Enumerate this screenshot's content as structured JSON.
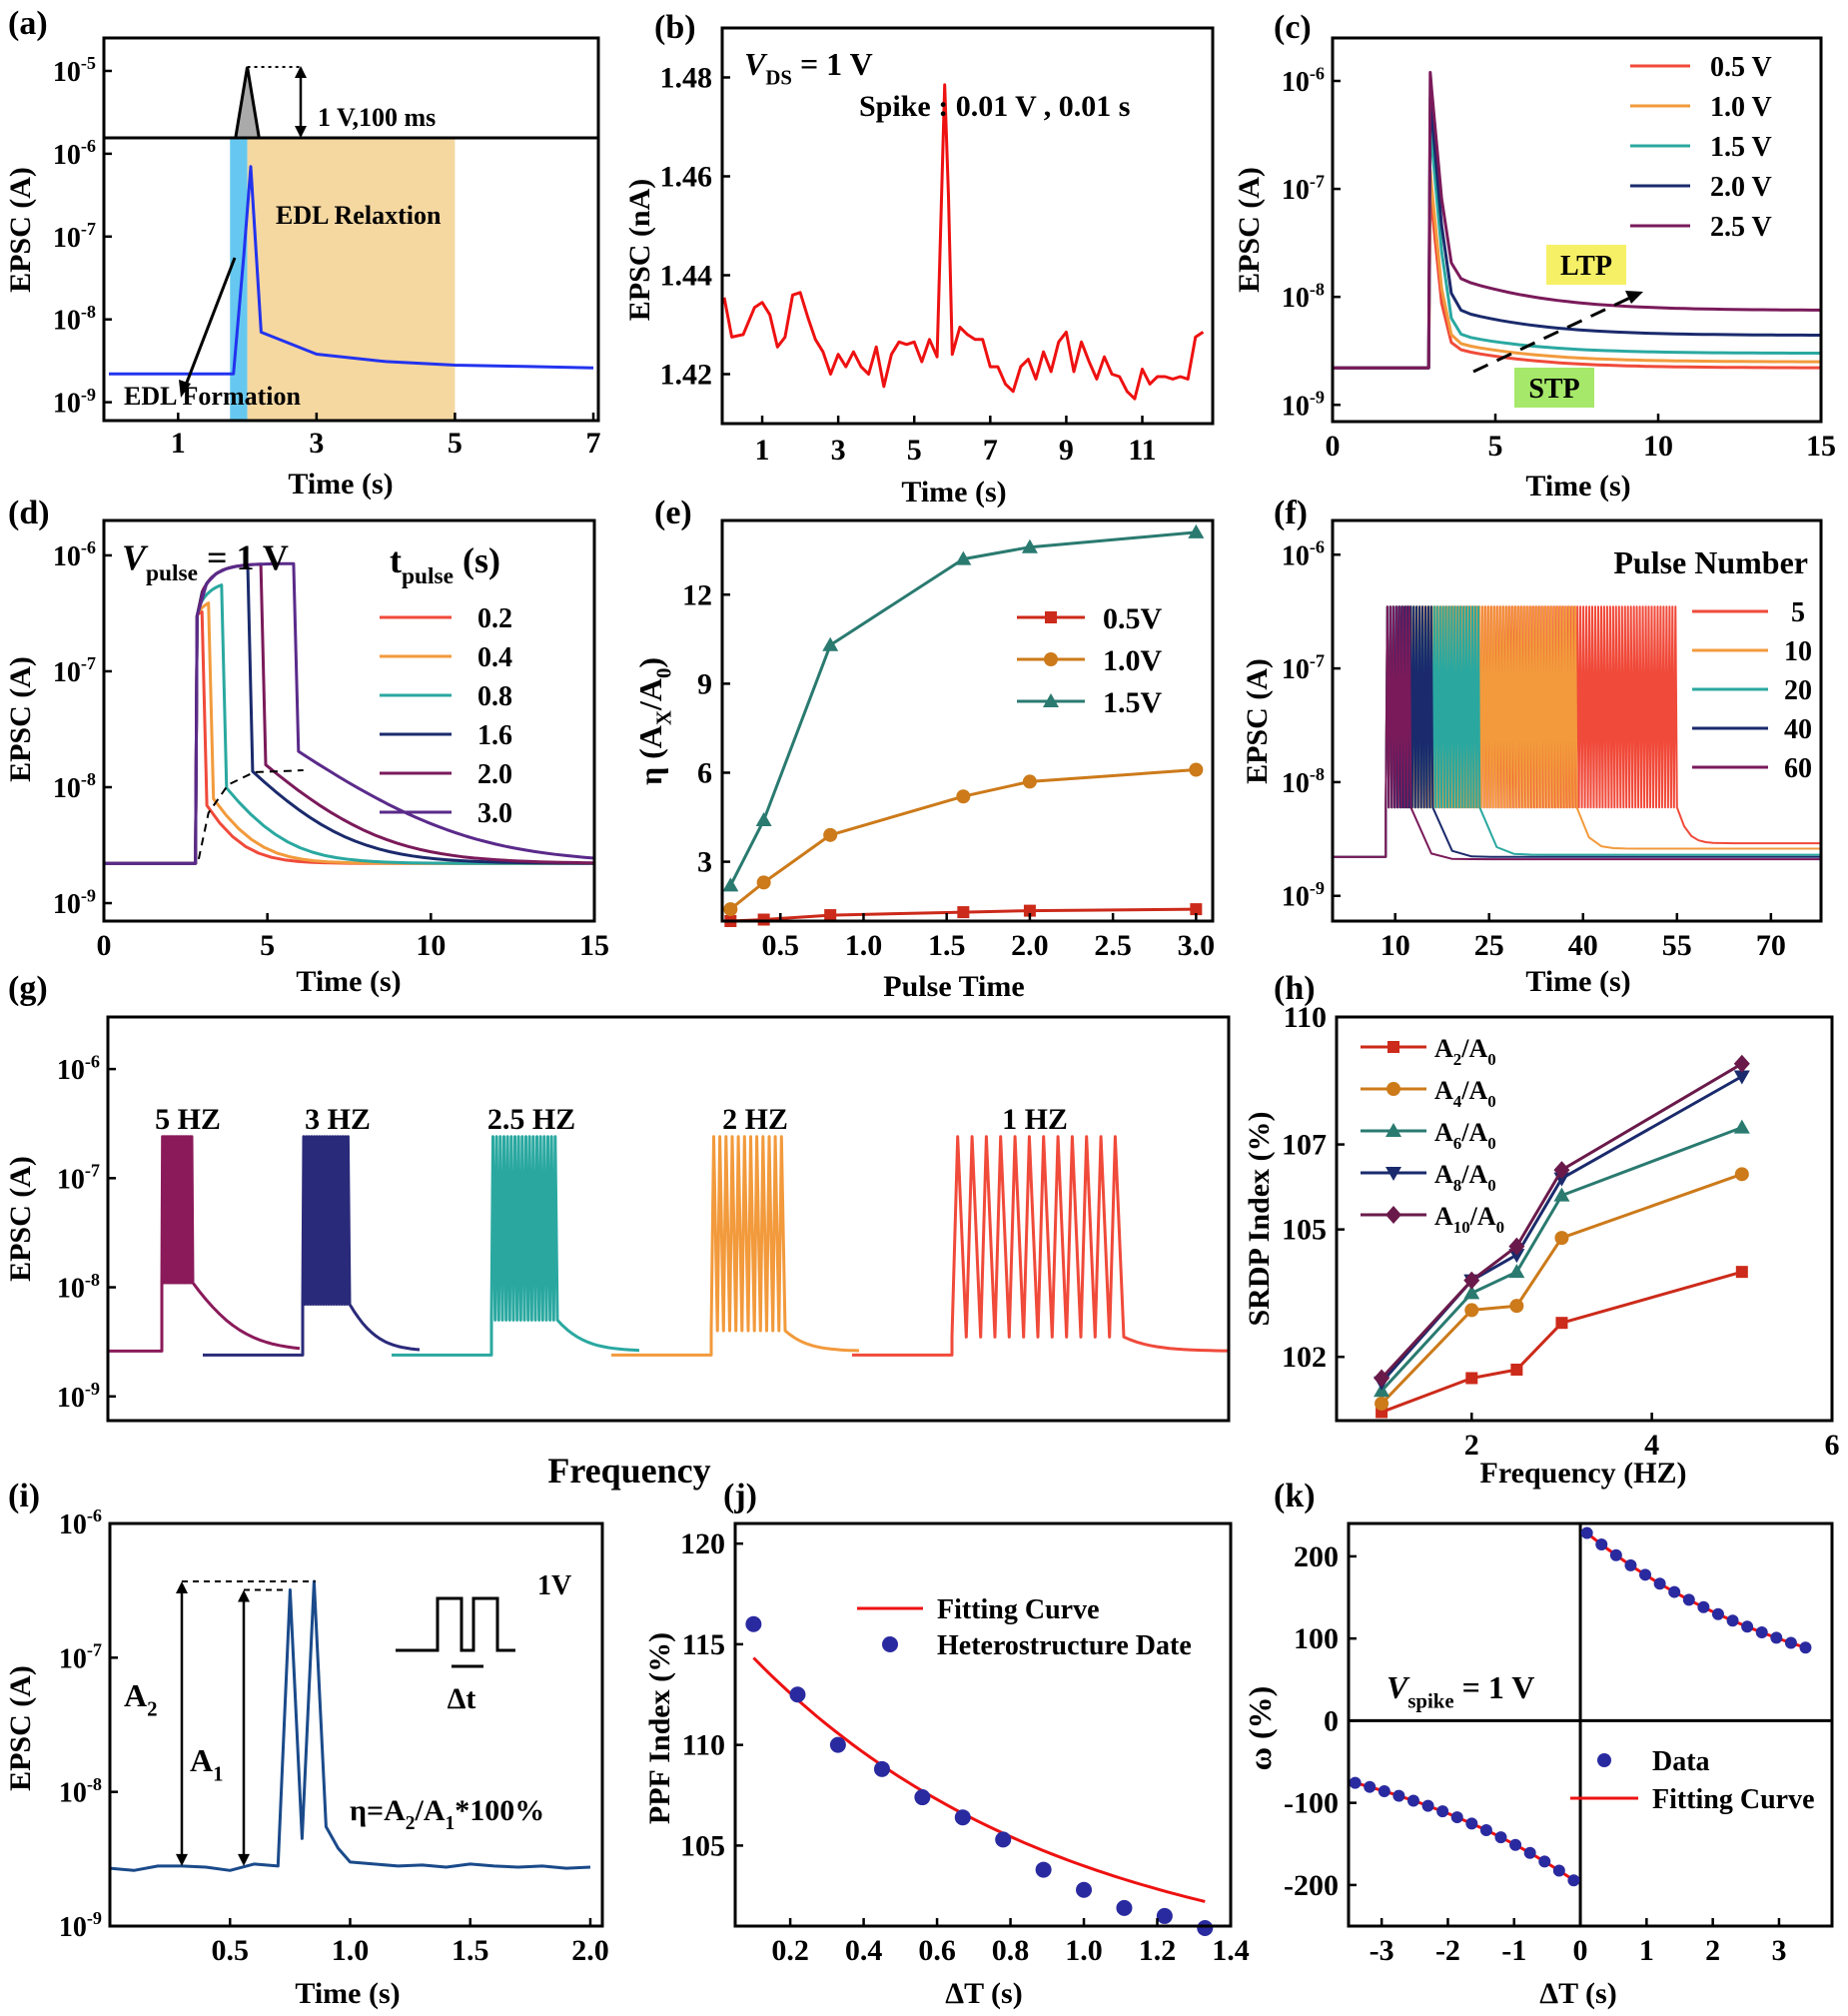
{
  "chart_data": [
    {
      "id": "a",
      "type": "line",
      "label": "(a)",
      "xlabel": "Time (s)",
      "ylabel": "EPSC (A)",
      "xlim": [
        0,
        7
      ],
      "ylim": [
        1e-09,
        1e-05
      ],
      "yscale": "log",
      "xticks": [
        1,
        3,
        5,
        7
      ],
      "yticks": [
        1e-09,
        1e-08,
        1e-07,
        1e-06,
        1e-05
      ],
      "ytick_labels": [
        [
          "10",
          "-9"
        ],
        [
          "10",
          "-8"
        ],
        [
          "10",
          "-7"
        ],
        [
          "10",
          "-6"
        ],
        [
          "10",
          "-5"
        ]
      ],
      "annotations": [
        "1 V,100 ms",
        "EDL Relaxtion",
        "EDL Formation"
      ],
      "colors": {
        "line": "#2233ee",
        "formation": "#66c8f0",
        "relaxation": "#f5d7a0",
        "pulse": "#aaaaaa"
      },
      "series": [
        {
          "name": "EPSC",
          "x": [
            0,
            1.8,
            1.95,
            2.05,
            2.2,
            3,
            4,
            5,
            6,
            7
          ],
          "y": [
            2.2e-09,
            2.2e-09,
            6e-08,
            7e-07,
            7e-09,
            3.8e-09,
            3.1e-09,
            2.8e-09,
            2.7e-09,
            2.6e-09
          ]
        }
      ],
      "pulse": {
        "start": 1.85,
        "peak_time": 2.0,
        "end": 2.15
      }
    },
    {
      "id": "b",
      "type": "line",
      "label": "(b)",
      "xlabel": "Time (s)",
      "ylabel": "EPSC (nA)",
      "xlim": [
        0,
        12.8
      ],
      "ylim": [
        1.41,
        1.49
      ],
      "xticks": [
        1,
        3,
        5,
        7,
        9,
        11
      ],
      "yticks": [
        1.42,
        1.44,
        1.46,
        1.48
      ],
      "annotations": [
        "V",
        "DS",
        " = 1 V",
        "Spike : 0.01 V , 0.01 s"
      ],
      "color": "#ee1111",
      "series": [
        {
          "name": "EPSC",
          "x": [
            0,
            0.2,
            0.5,
            0.8,
            1.0,
            1.2,
            1.4,
            1.6,
            1.8,
            2.0,
            2.2,
            2.4,
            2.6,
            2.8,
            3.0,
            3.2,
            3.4,
            3.6,
            3.8,
            4.0,
            4.2,
            4.4,
            4.6,
            4.8,
            5.0,
            5.2,
            5.4,
            5.6,
            5.8,
            5.9,
            6.0,
            6.2,
            6.4,
            6.6,
            6.8,
            7.0,
            7.2,
            7.4,
            7.6,
            7.8,
            8.0,
            8.2,
            8.4,
            8.6,
            8.8,
            9.0,
            9.2,
            9.4,
            9.6,
            9.8,
            10.0,
            10.2,
            10.4,
            10.6,
            10.8,
            11.0,
            11.2,
            11.4,
            11.6,
            11.8,
            12.0,
            12.2,
            12.4,
            12.6
          ],
          "y": [
            1.4355,
            1.4275,
            1.428,
            1.4335,
            1.4345,
            1.432,
            1.4255,
            1.4275,
            1.436,
            1.4365,
            1.4315,
            1.427,
            1.4245,
            1.42,
            1.424,
            1.4215,
            1.4245,
            1.4215,
            1.42,
            1.4255,
            1.4175,
            1.424,
            1.4265,
            1.426,
            1.4265,
            1.4225,
            1.427,
            1.4235,
            1.4785,
            1.456,
            1.424,
            1.4295,
            1.428,
            1.427,
            1.427,
            1.4215,
            1.4215,
            1.418,
            1.4165,
            1.4215,
            1.423,
            1.419,
            1.4245,
            1.4205,
            1.4265,
            1.4285,
            1.4205,
            1.4265,
            1.4225,
            1.419,
            1.4235,
            1.42,
            1.4195,
            1.4165,
            1.415,
            1.421,
            1.418,
            1.4195,
            1.4195,
            1.419,
            1.4195,
            1.419,
            1.4275,
            1.4285
          ]
        }
      ]
    },
    {
      "id": "c",
      "type": "line",
      "label": "(c)",
      "xlabel": "Time (s)",
      "ylabel": "EPSC (A)",
      "xlim": [
        0,
        15
      ],
      "ylim": [
        7e-10,
        2.5e-06
      ],
      "yscale": "log",
      "xticks": [
        0,
        5,
        10,
        15
      ],
      "yticks": [
        1e-09,
        1e-08,
        1e-07,
        1e-06
      ],
      "ytick_labels": [
        [
          "10",
          "-9"
        ],
        [
          "10",
          "-8"
        ],
        [
          "10",
          "-7"
        ],
        [
          "10",
          "-6"
        ]
      ],
      "annotations": [
        "LTP",
        "STP"
      ],
      "series": [
        {
          "name": "0.5 V",
          "color": "#f04a3a",
          "peak": 1e-07,
          "final": 2.2e-09
        },
        {
          "name": "1.0 V",
          "color": "#f29a3c",
          "peak": 1.5e-07,
          "final": 2.5e-09
        },
        {
          "name": "1.5 V",
          "color": "#2aa8a0",
          "peak": 4e-07,
          "final": 3e-09
        },
        {
          "name": "2.0 V",
          "color": "#1a2a6c",
          "peak": 7e-07,
          "final": 4.4e-09
        },
        {
          "name": "2.5 V",
          "color": "#7a1a5a",
          "peak": 1.2e-06,
          "final": 7.5e-09
        }
      ],
      "baseline": 2.2e-09,
      "pulse_time": 3.0
    },
    {
      "id": "d",
      "type": "line",
      "label": "(d)",
      "xlabel": "Time (s)",
      "ylabel": "EPSC (A)",
      "xlim": [
        0,
        15
      ],
      "ylim": [
        7e-10,
        2e-06
      ],
      "yscale": "log",
      "xticks": [
        0,
        5,
        10,
        15
      ],
      "yticks": [
        1e-09,
        1e-08,
        1e-07,
        1e-06
      ],
      "ytick_labels": [
        [
          "10",
          "-9"
        ],
        [
          "10",
          "-8"
        ],
        [
          "10",
          "-7"
        ],
        [
          "10",
          "-6"
        ]
      ],
      "legend_title": [
        "V",
        "pulse",
        " = 1 V",
        "t",
        "pulse",
        " (s)"
      ],
      "series": [
        {
          "name": "0.2",
          "color": "#f04a3a",
          "duration": 0.2
        },
        {
          "name": "0.4",
          "color": "#f29a3c",
          "duration": 0.4
        },
        {
          "name": "0.8",
          "color": "#2aa8a0",
          "duration": 0.8
        },
        {
          "name": "1.6",
          "color": "#1a2a6c",
          "duration": 1.6
        },
        {
          "name": "2.0",
          "color": "#7a1a5a",
          "duration": 2.0
        },
        {
          "name": "3.0",
          "color": "#5a2a8a",
          "duration": 3.0
        }
      ],
      "baseline": 2.2e-09,
      "pulse_start": 2.8
    },
    {
      "id": "e",
      "type": "line",
      "label": "(e)",
      "xlabel": "Pulse Time",
      "ylabel": "η (A_X/A_0)",
      "xlim": [
        0.15,
        3.1
      ],
      "ylim": [
        1,
        14.5
      ],
      "xticks": [
        0.5,
        1.0,
        1.5,
        2.0,
        2.5,
        3.0
      ],
      "yticks": [
        3,
        6,
        9,
        12
      ],
      "series": [
        {
          "name": "0.5V",
          "color": "#cc2a1a",
          "marker": "square",
          "x": [
            0.2,
            0.4,
            0.8,
            1.6,
            2.0,
            3.0
          ],
          "y": [
            1.0,
            1.05,
            1.2,
            1.3,
            1.35,
            1.4
          ]
        },
        {
          "name": "1.0V",
          "color": "#cc7a1a",
          "marker": "circle",
          "x": [
            0.2,
            0.4,
            0.8,
            1.6,
            2.0,
            3.0
          ],
          "y": [
            1.4,
            2.3,
            3.9,
            5.2,
            5.7,
            6.1
          ]
        },
        {
          "name": "1.5V",
          "color": "#2a7a70",
          "marker": "triangle",
          "x": [
            0.2,
            0.4,
            0.8,
            1.6,
            2.0,
            3.0
          ],
          "y": [
            2.2,
            4.4,
            10.3,
            13.2,
            13.6,
            14.1
          ]
        }
      ]
    },
    {
      "id": "f",
      "type": "line",
      "label": "(f)",
      "xlabel": "Time (s)",
      "ylabel": "EPSC (A)",
      "xlim": [
        0,
        78
      ],
      "ylim": [
        6e-10,
        2e-06
      ],
      "yscale": "log",
      "xticks": [
        10,
        25,
        40,
        55,
        70
      ],
      "yticks": [
        1e-09,
        1e-08,
        1e-07,
        1e-06
      ],
      "ytick_labels": [
        [
          "10",
          "-9"
        ],
        [
          "10",
          "-8"
        ],
        [
          "10",
          "-7"
        ],
        [
          "10",
          "-6"
        ]
      ],
      "legend_title": "Pulse Number",
      "series": [
        {
          "name": "5",
          "color": "#f04a3a",
          "end": 55.0,
          "final": 2.9e-09
        },
        {
          "name": "10",
          "color": "#f29a3c",
          "end": 39.0,
          "final": 2.6e-09
        },
        {
          "name": "20",
          "color": "#2aa8a0",
          "end": 23.5,
          "final": 2.3e-09
        },
        {
          "name": "40",
          "color": "#1a2a6c",
          "end": 16.0,
          "final": 2.2e-09
        },
        {
          "name": "60",
          "color": "#7a1a5a",
          "end": 12.5,
          "final": 2.1e-09
        }
      ],
      "baseline": 2.2e-09,
      "start": 8.5,
      "high": 3.5e-07,
      "low": 6e-09
    },
    {
      "id": "g",
      "type": "line",
      "label": "(g)",
      "xlabel": "Frequency",
      "ylabel": "EPSC (A)",
      "ylim": [
        6e-10,
        3e-06
      ],
      "yscale": "log",
      "yticks": [
        1e-09,
        1e-08,
        1e-07,
        1e-06
      ],
      "ytick_labels": [
        [
          "10",
          "-9"
        ],
        [
          "10",
          "-8"
        ],
        [
          "10",
          "-7"
        ],
        [
          "10",
          "-6"
        ]
      ],
      "series": [
        {
          "name": "5 HZ",
          "color": "#8a1a5a",
          "pulses": 10
        },
        {
          "name": "3 HZ",
          "color": "#2a2a7a",
          "pulses": 10
        },
        {
          "name": "2.5 HZ",
          "color": "#2aa8a0",
          "pulses": 10
        },
        {
          "name": "2 HZ",
          "color": "#f29a3c",
          "pulses": 10
        },
        {
          "name": "1 HZ",
          "color": "#f04a3a",
          "pulses": 10
        }
      ],
      "baseline": 2.6e-09,
      "peak": 2.4e-07
    },
    {
      "id": "h",
      "type": "line",
      "label": "(h)",
      "xlabel": "Frequency (HZ)",
      "ylabel": "SRDP Index (%)",
      "xlim": [
        0.5,
        6
      ],
      "ylim": [
        100.5,
        110
      ],
      "xticks": [
        2,
        4,
        6
      ],
      "yticks": [
        102,
        105,
        107,
        110
      ],
      "series": [
        {
          "name": "A_2/A_0",
          "label": [
            "A",
            "2",
            "/A",
            "0"
          ],
          "color": "#cc2a1a",
          "marker": "square",
          "x": [
            1,
            2,
            2.5,
            3,
            5
          ],
          "y": [
            100.7,
            101.5,
            101.7,
            102.8,
            104.0
          ]
        },
        {
          "name": "A_4/A_0",
          "label": [
            "A",
            "4",
            "/A",
            "0"
          ],
          "color": "#cc7a1a",
          "marker": "circle",
          "x": [
            1,
            2,
            2.5,
            3,
            5
          ],
          "y": [
            100.9,
            103.1,
            103.2,
            104.8,
            106.3
          ]
        },
        {
          "name": "A_6/A_0",
          "label": [
            "A",
            "6",
            "/A",
            "0"
          ],
          "color": "#2a7a70",
          "marker": "triangle-up",
          "x": [
            1,
            2,
            2.5,
            3,
            5
          ],
          "y": [
            101.2,
            103.5,
            104.0,
            105.8,
            107.4
          ]
        },
        {
          "name": "A_8/A_0",
          "label": [
            "A",
            "8",
            "/A",
            "0"
          ],
          "color": "#1a2a6c",
          "marker": "triangle-down",
          "x": [
            1,
            2,
            2.5,
            3,
            5
          ],
          "y": [
            101.4,
            103.8,
            104.4,
            106.2,
            108.6
          ]
        },
        {
          "name": "A_10/A_0",
          "label": [
            "A",
            "10",
            "/A",
            "0"
          ],
          "color": "#6a1a4a",
          "marker": "diamond",
          "x": [
            1,
            2,
            2.5,
            3,
            5
          ],
          "y": [
            101.5,
            103.8,
            104.6,
            106.4,
            108.9
          ]
        }
      ]
    },
    {
      "id": "i",
      "type": "line",
      "label": "(i)",
      "xlabel": "Time (s)",
      "ylabel": "EPSC (A)",
      "xlim": [
        0,
        2.05
      ],
      "ylim": [
        1e-09,
        1e-06
      ],
      "yscale": "log",
      "xticks": [
        0.5,
        1.0,
        1.5,
        2.0
      ],
      "yticks": [
        1e-09,
        1e-08,
        1e-07,
        1e-06
      ],
      "ytick_labels": [
        [
          "10",
          "-9"
        ],
        [
          "10",
          "-8"
        ],
        [
          "10",
          "-7"
        ],
        [
          "10",
          "-6"
        ]
      ],
      "annotations": [
        "A",
        "2",
        "A",
        "1",
        "η=A",
        "2",
        "/A",
        "1",
        "*100%",
        "1V",
        "Δt"
      ],
      "color": "#1a4a8a",
      "series": [
        {
          "name": "EPSC",
          "x": [
            0,
            0.1,
            0.2,
            0.3,
            0.4,
            0.5,
            0.6,
            0.7,
            0.75,
            0.8,
            0.85,
            0.9,
            0.95,
            1.0,
            1.1,
            1.2,
            1.3,
            1.4,
            1.5,
            1.6,
            1.7,
            1.8,
            1.9,
            2.0
          ],
          "y": [
            2.7e-09,
            2.6e-09,
            2.8e-09,
            2.8e-09,
            2.75e-09,
            2.6e-09,
            2.9e-09,
            2.8e-09,
            3.2e-07,
            4.5e-09,
            3.7e-07,
            5.5e-09,
            3.8e-09,
            3e-09,
            2.9e-09,
            2.8e-09,
            2.85e-09,
            2.75e-09,
            2.9e-09,
            2.8e-09,
            2.75e-09,
            2.8e-09,
            2.7e-09,
            2.75e-09
          ]
        }
      ]
    },
    {
      "id": "j",
      "type": "scatter",
      "label": "(j)",
      "xlabel": "ΔT (s)",
      "ylabel": "PPF Index (%)",
      "xlim": [
        0.05,
        1.4
      ],
      "ylim": [
        101,
        121
      ],
      "xticks": [
        0.2,
        0.4,
        0.6,
        0.8,
        1.0,
        1.2,
        1.4
      ],
      "yticks": [
        105,
        110,
        115,
        120
      ],
      "series": [
        {
          "name": "Fitting  Curve",
          "color": "#ee1111",
          "kind": "line",
          "fit": {
            "A": 17.8,
            "tau": 0.85,
            "y0": 98.5
          }
        },
        {
          "name": "Heterostructure  Date",
          "color": "#2a2aa0",
          "kind": "scatter",
          "x": [
            0.1,
            0.22,
            0.33,
            0.45,
            0.56,
            0.67,
            0.78,
            0.89,
            1.0,
            1.11,
            1.22,
            1.33
          ],
          "y": [
            116.0,
            112.5,
            110.0,
            108.8,
            107.4,
            106.4,
            105.3,
            103.8,
            102.8,
            101.9,
            101.5,
            100.9
          ]
        }
      ]
    },
    {
      "id": "k",
      "type": "scatter",
      "label": "(k)",
      "xlabel": "ΔT (s)",
      "ylabel": "ω (%)",
      "xlim": [
        -3.5,
        3.8
      ],
      "ylim": [
        -250,
        240
      ],
      "xticks": [
        -3,
        -2,
        -1,
        0,
        1,
        2,
        3
      ],
      "yticks": [
        -200,
        -100,
        0,
        100,
        200
      ],
      "annotations": [
        "V",
        "spike",
        " = 1 V"
      ],
      "series": [
        {
          "name": "Data",
          "color": "#2a2aa0",
          "kind": "scatter"
        },
        {
          "name": "Fitting Curve",
          "color": "#ee1111",
          "kind": "line"
        }
      ],
      "fit_positive": {
        "A": 235,
        "tau": 3.5,
        "xrange": [
          0.1,
          3.4
        ]
      },
      "fit_negative": {
        "A": -200,
        "tau": 3.5,
        "xrange": [
          -3.4,
          -0.1
        ]
      }
    }
  ]
}
